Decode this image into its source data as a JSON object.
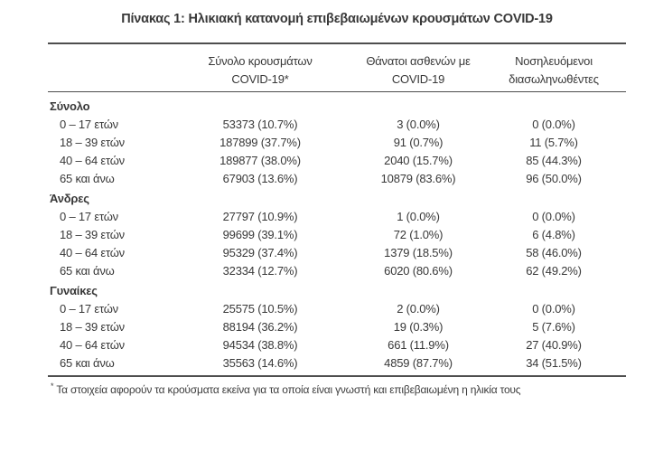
{
  "title": "Πίνακας 1: Ηλικιακή κατανομή επιβεβαιωμένων κρουσμάτων COVID-19",
  "table": {
    "columns": [
      {
        "line1": "",
        "line2": ""
      },
      {
        "line1": "Σύνολο κρουσμάτων",
        "line2": "COVID-19*"
      },
      {
        "line1": "Θάνατοι ασθενών με",
        "line2": "COVID-19"
      },
      {
        "line1": "Νοσηλευόμενοι",
        "line2": "διασωληνωθέντες"
      }
    ],
    "groups": [
      {
        "label": "Σύνολο",
        "rows": [
          {
            "age": "0 – 17 ετών",
            "cases": "53373 (10.7%)",
            "deaths": "3 (0.0%)",
            "intubated": "0 (0.0%)"
          },
          {
            "age": "18 – 39 ετών",
            "cases": "187899 (37.7%)",
            "deaths": "91 (0.7%)",
            "intubated": "11 (5.7%)"
          },
          {
            "age": "40 – 64 ετών",
            "cases": "189877 (38.0%)",
            "deaths": "2040 (15.7%)",
            "intubated": "85 (44.3%)"
          },
          {
            "age": "65 και άνω",
            "cases": "67903 (13.6%)",
            "deaths": "10879 (83.6%)",
            "intubated": "96 (50.0%)"
          }
        ]
      },
      {
        "label": "Άνδρες",
        "rows": [
          {
            "age": "0 – 17 ετών",
            "cases": "27797 (10.9%)",
            "deaths": "1 (0.0%)",
            "intubated": "0 (0.0%)"
          },
          {
            "age": "18 – 39 ετών",
            "cases": "99699 (39.1%)",
            "deaths": "72 (1.0%)",
            "intubated": "6 (4.8%)"
          },
          {
            "age": "40 – 64 ετών",
            "cases": "95329 (37.4%)",
            "deaths": "1379 (18.5%)",
            "intubated": "58 (46.0%)"
          },
          {
            "age": "65 και άνω",
            "cases": "32334 (12.7%)",
            "deaths": "6020 (80.6%)",
            "intubated": "62 (49.2%)"
          }
        ]
      },
      {
        "label": "Γυναίκες",
        "rows": [
          {
            "age": "0 – 17 ετών",
            "cases": "25575 (10.5%)",
            "deaths": "2 (0.0%)",
            "intubated": "0 (0.0%)"
          },
          {
            "age": "18 – 39 ετών",
            "cases": "88194 (36.2%)",
            "deaths": "19 (0.3%)",
            "intubated": "5 (7.6%)"
          },
          {
            "age": "40 – 64 ετών",
            "cases": "94534 (38.8%)",
            "deaths": "661 (11.9%)",
            "intubated": "27 (40.9%)"
          },
          {
            "age": "65 και άνω",
            "cases": "35563 (14.6%)",
            "deaths": "4859 (87.7%)",
            "intubated": "34 (51.5%)"
          }
        ]
      }
    ],
    "footnote": {
      "marker": "*",
      "text": "Τα στοιχεία αφορούν τα κρούσματα εκείνα για τα οποία είναι γνωστή και επιβεβαιωμένη η ηλικία τους"
    }
  },
  "colors": {
    "text": "#383838",
    "rule": "#4e4e4e",
    "background": "#ffffff"
  }
}
